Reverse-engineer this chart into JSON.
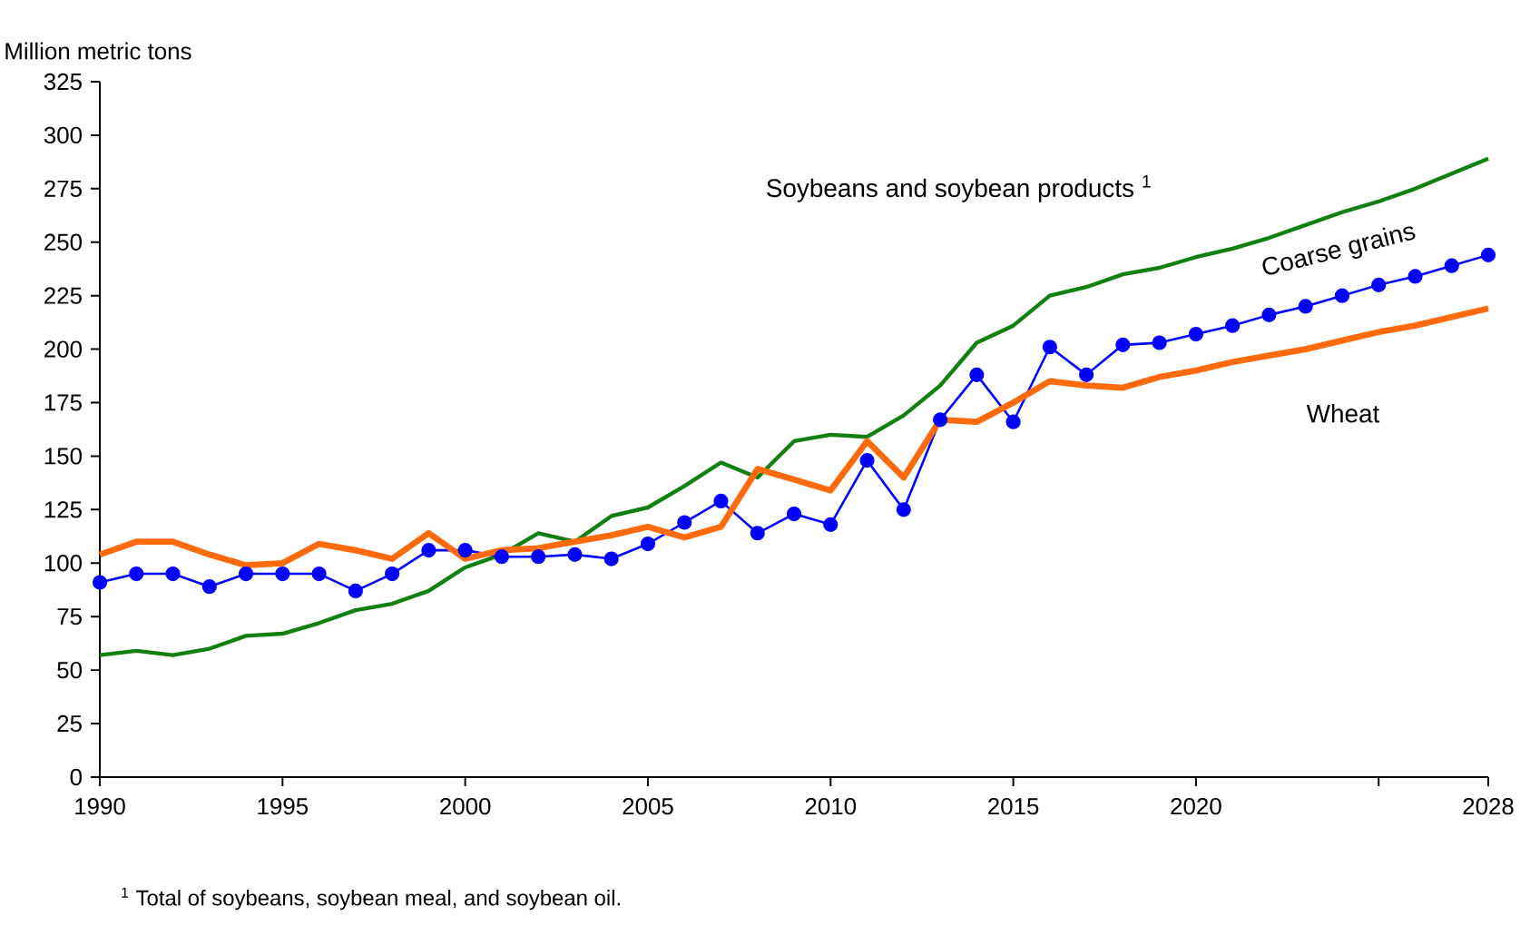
{
  "chart_data": {
    "type": "line",
    "ylabel": "Million metric tons",
    "x": [
      1990,
      1991,
      1992,
      1993,
      1994,
      1995,
      1996,
      1997,
      1998,
      1999,
      2000,
      2001,
      2002,
      2003,
      2004,
      2005,
      2006,
      2007,
      2008,
      2009,
      2010,
      2011,
      2012,
      2013,
      2014,
      2015,
      2016,
      2017,
      2018,
      2019,
      2020,
      2021,
      2022,
      2023,
      2024,
      2025,
      2026,
      2027,
      2028
    ],
    "series": [
      {
        "name": "Soybeans and soybean products $^{1}$",
        "color": "#108010",
        "marker": "none",
        "values": [
          57,
          59,
          57,
          60,
          66,
          67,
          72,
          78,
          81,
          87,
          98,
          104,
          114,
          110,
          122,
          126,
          136,
          147,
          140,
          157,
          160,
          159,
          169,
          183,
          203,
          211,
          225,
          229,
          235,
          238,
          243,
          247,
          252,
          258,
          264,
          269,
          275,
          282,
          289
        ]
      },
      {
        "name": "Coarse grains",
        "color": "#0000ff",
        "marker": "circle",
        "values": [
          91,
          95,
          95,
          89,
          95,
          95,
          95,
          87,
          95,
          106,
          106,
          103,
          103,
          104,
          102,
          109,
          119,
          129,
          114,
          123,
          118,
          148,
          125,
          167,
          188,
          166,
          201,
          188,
          202,
          203,
          207,
          211,
          216,
          220,
          225,
          230,
          234,
          239,
          244
        ]
      },
      {
        "name": "Wheat",
        "color": "#ff6a0a",
        "marker": "none",
        "values": [
          104,
          110,
          110,
          104,
          99,
          100,
          109,
          106,
          102,
          114,
          102,
          106,
          107,
          110,
          113,
          117,
          112,
          117,
          144,
          139,
          134,
          157,
          140,
          167,
          166,
          175,
          185,
          183,
          182,
          187,
          190,
          194,
          197,
          200,
          204,
          208,
          211,
          215,
          219
        ]
      }
    ],
    "xlim": [
      1990,
      2028
    ],
    "xticks": [
      1990,
      1995,
      2000,
      2005,
      2010,
      2015,
      2020,
      {
        "value": 2025,
        "label": null
      },
      2028
    ],
    "ylim": [
      0,
      325
    ],
    "yticks": [
      0,
      25,
      50,
      75,
      100,
      125,
      150,
      175,
      200,
      225,
      250,
      275,
      300,
      325
    ],
    "annotations": [
      "$^{1}$ Total of soybeans, soybean meal, and soybean oil."
    ]
  }
}
